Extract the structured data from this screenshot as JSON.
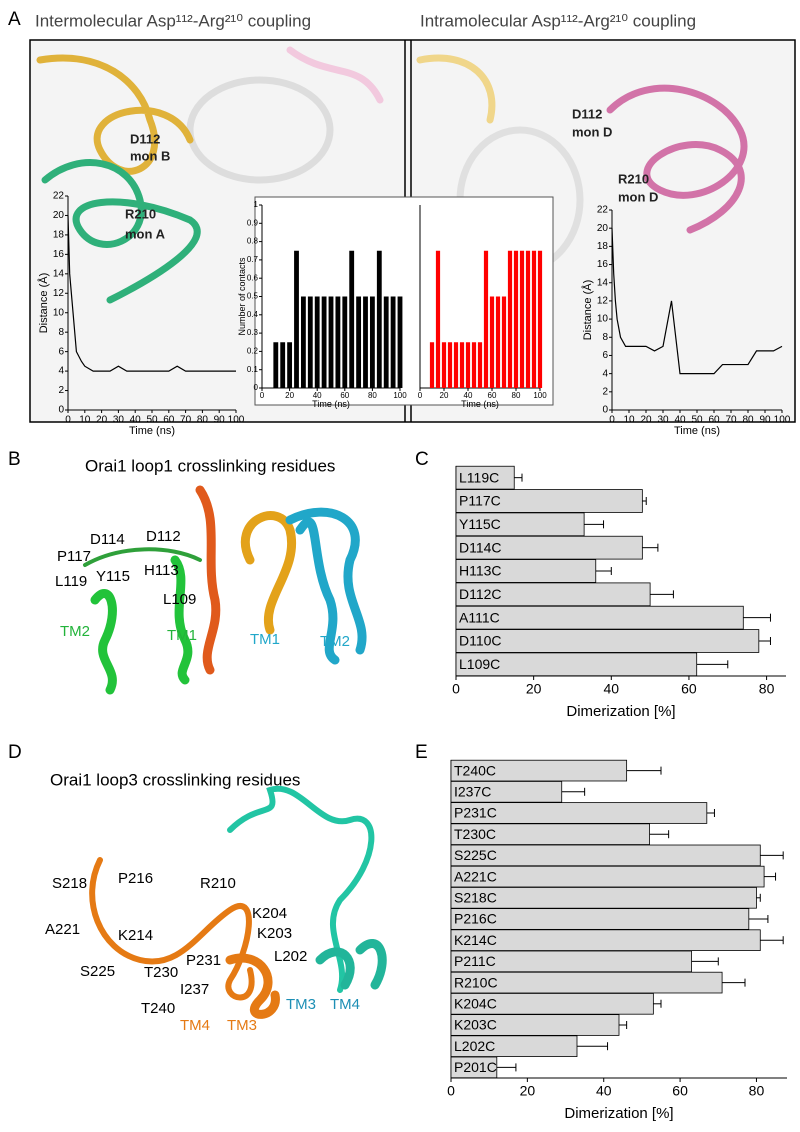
{
  "panels": {
    "A": {
      "label": "A",
      "titles": [
        "Intermolecular Asp¹¹²-Arg²¹⁰ coupling",
        "Intramolecular Asp¹¹²-Arg²¹⁰ coupling"
      ],
      "labels": [
        "D112",
        "mon B",
        "R210",
        "mon A",
        "D112",
        "mon D",
        "R210",
        "mon D"
      ]
    },
    "B": {
      "label": "B",
      "title": "Orai1 loop1 crosslinking residues",
      "labels": [
        "D114",
        "D112",
        "P117",
        "Y115",
        "H113",
        "L119",
        "L109"
      ],
      "helices": [
        "TM2",
        "TM1",
        "TM1",
        "TM2"
      ]
    },
    "C": {
      "label": "C"
    },
    "D": {
      "label": "D",
      "title": "Orai1 loop3 crosslinking residues",
      "labels": [
        "S218",
        "P216",
        "R210",
        "K204",
        "A221",
        "K214",
        "K203",
        "L202",
        "S225",
        "P231",
        "T230",
        "I237",
        "T240"
      ],
      "helices": [
        "TM4",
        "TM3",
        "TM3",
        "TM4"
      ]
    },
    "E": {
      "label": "E"
    }
  },
  "chart_data": [
    {
      "type": "line",
      "color": "#000000",
      "xlabel": "Time (ns)",
      "ylabel": "Distance (Å)",
      "x": [
        0,
        1,
        2,
        3,
        5,
        8,
        10,
        15,
        20,
        25,
        30,
        35,
        40,
        45,
        50,
        55,
        60,
        65,
        70,
        75,
        80,
        85,
        90,
        95,
        100
      ],
      "values": [
        20,
        14,
        12,
        10,
        6,
        5,
        4.5,
        4,
        4,
        4,
        4.5,
        4,
        4,
        4,
        4,
        4,
        4,
        4.5,
        4,
        4,
        4,
        4,
        4,
        4,
        4
      ],
      "xlim": [
        0,
        100
      ],
      "xticks": [
        0,
        10,
        20,
        30,
        40,
        50,
        60,
        70,
        80,
        90,
        100
      ],
      "ylim": [
        0,
        22
      ],
      "yticks": [
        0,
        2,
        4,
        6,
        8,
        10,
        12,
        14,
        16,
        18,
        20,
        22
      ]
    },
    {
      "type": "bar",
      "color": "#000000",
      "xlabel": "Time (ns)",
      "ylabel": "Number of contacts",
      "x": [
        0,
        5,
        10,
        15,
        20,
        25,
        30,
        35,
        40,
        45,
        50,
        55,
        60,
        65,
        70,
        75,
        80,
        85,
        90,
        95,
        100
      ],
      "values": [
        0,
        0,
        0.25,
        0.25,
        0.25,
        0.75,
        0.5,
        0.5,
        0.5,
        0.5,
        0.5,
        0.5,
        0.5,
        0.75,
        0.5,
        0.5,
        0.5,
        0.75,
        0.5,
        0.5,
        0.5
      ],
      "xlim": [
        0,
        100
      ],
      "xticks": [
        0,
        20,
        40,
        60,
        80,
        100
      ],
      "ylim": [
        0,
        1
      ],
      "yticks": [
        0,
        0.1,
        0.2,
        0.3,
        0.4,
        0.5,
        0.6,
        0.7,
        0.8,
        0.9,
        1
      ]
    },
    {
      "type": "bar",
      "color": "#ff0000",
      "xlabel": "Time (ns)",
      "x": [
        0,
        5,
        10,
        15,
        20,
        25,
        30,
        35,
        40,
        45,
        50,
        55,
        60,
        65,
        70,
        75,
        80,
        85,
        90,
        95,
        100
      ],
      "values": [
        0,
        0,
        0.25,
        0.75,
        0.25,
        0.25,
        0.25,
        0.25,
        0.25,
        0.25,
        0.25,
        0.75,
        0.5,
        0.5,
        0.5,
        0.75,
        0.75,
        0.75,
        0.75,
        0.75,
        0.75
      ],
      "xlim": [
        0,
        100
      ],
      "xticks": [
        0,
        20,
        40,
        60,
        80,
        100
      ],
      "ylim": [
        0,
        1
      ]
    },
    {
      "type": "line",
      "color": "#000000",
      "xlabel": "Time (ns)",
      "ylabel": "Distance (Å)",
      "x": [
        0,
        1,
        2,
        3,
        5,
        8,
        10,
        15,
        20,
        25,
        30,
        35,
        40,
        45,
        50,
        55,
        60,
        65,
        70,
        75,
        80,
        85,
        90,
        95,
        100
      ],
      "values": [
        20,
        15,
        12,
        10,
        8,
        7,
        7,
        7,
        7,
        6.5,
        7,
        12,
        4,
        4,
        4,
        4,
        4,
        5,
        5,
        5,
        5,
        6.5,
        6.5,
        6.5,
        7
      ],
      "xlim": [
        0,
        100
      ],
      "xticks": [
        0,
        10,
        20,
        30,
        40,
        50,
        60,
        70,
        80,
        90,
        100
      ],
      "ylim": [
        0,
        22
      ],
      "yticks": [
        0,
        2,
        4,
        6,
        8,
        10,
        12,
        14,
        16,
        18,
        20,
        22
      ]
    },
    {
      "type": "bar",
      "orientation": "horizontal",
      "color": "#d9d9d9",
      "xlabel": "Dimerization [%]",
      "categories": [
        "L119C",
        "P117C",
        "Y115C",
        "D114C",
        "H113C",
        "D112C",
        "A111C",
        "D110C",
        "L109C"
      ],
      "values": [
        15,
        48,
        33,
        48,
        36,
        50,
        74,
        78,
        62
      ],
      "errors": [
        2,
        1,
        5,
        4,
        4,
        6,
        7,
        3,
        8
      ],
      "xlim": [
        0,
        85
      ],
      "xticks": [
        0,
        20,
        40,
        60,
        80
      ]
    },
    {
      "type": "bar",
      "orientation": "horizontal",
      "color": "#d9d9d9",
      "xlabel": "Dimerization [%]",
      "categories": [
        "T240C",
        "I237C",
        "P231C",
        "T230C",
        "S225C",
        "A221C",
        "S218C",
        "P216C",
        "K214C",
        "P211C",
        "R210C",
        "K204C",
        "K203C",
        "L202C",
        "P201C"
      ],
      "values": [
        46,
        29,
        67,
        52,
        81,
        82,
        80,
        78,
        81,
        63,
        71,
        53,
        44,
        33,
        12
      ],
      "errors": [
        9,
        6,
        2,
        5,
        6,
        3,
        1,
        5,
        6,
        7,
        6,
        2,
        2,
        8,
        5
      ],
      "xlim": [
        0,
        88
      ],
      "xticks": [
        0,
        20,
        40,
        60,
        80
      ]
    }
  ]
}
